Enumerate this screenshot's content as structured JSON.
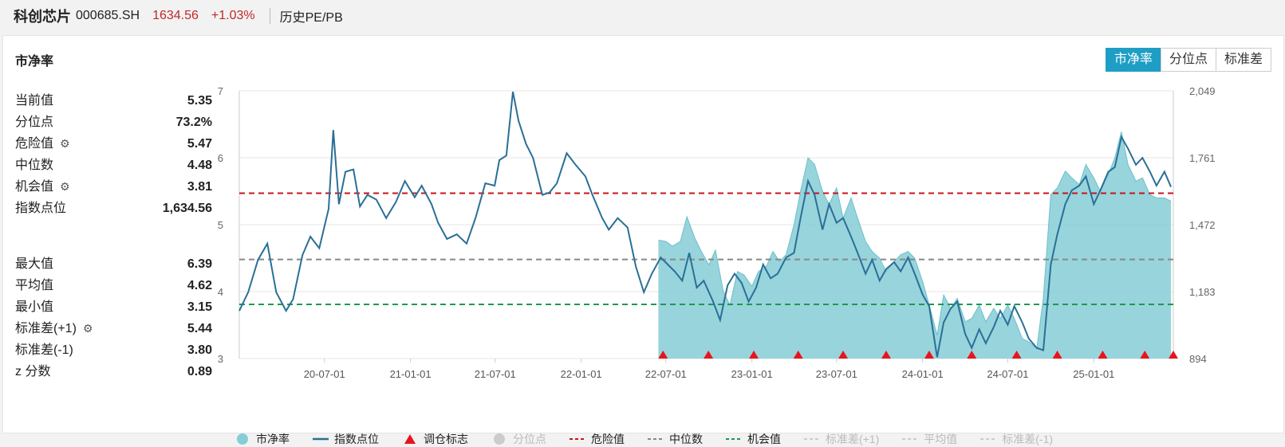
{
  "header": {
    "name": "科创芯片",
    "code": "000685.SH",
    "price": "1634.56",
    "change": "+1.03%",
    "tab": "历史PE/PB"
  },
  "card": {
    "title": "市净率",
    "buttons": [
      "市净率",
      "分位点",
      "标准差"
    ]
  },
  "stats": {
    "group1": [
      {
        "label": "当前值",
        "value": "5.35",
        "gear": false
      },
      {
        "label": "分位点",
        "value": "73.2%",
        "gear": false
      },
      {
        "label": "危险值",
        "value": "5.47",
        "gear": true
      },
      {
        "label": "中位数",
        "value": "4.48",
        "gear": false
      },
      {
        "label": "机会值",
        "value": "3.81",
        "gear": true
      },
      {
        "label": "指数点位",
        "value": "1,634.56",
        "gear": false
      }
    ],
    "group2": [
      {
        "label": "最大值",
        "value": "6.39",
        "gear": false
      },
      {
        "label": "平均值",
        "value": "4.62",
        "gear": false
      },
      {
        "label": "最小值",
        "value": "3.15",
        "gear": false
      },
      {
        "label": "标准差(+1)",
        "value": "5.44",
        "gear": true
      },
      {
        "label": "标准差(-1)",
        "value": "3.80",
        "gear": false
      },
      {
        "label": "z 分数",
        "value": "0.89",
        "gear": false
      }
    ]
  },
  "legend": [
    {
      "label": "市净率",
      "kind": "dot",
      "color": "#86cdd6",
      "dim": false
    },
    {
      "label": "指数点位",
      "kind": "line",
      "color": "#2a6f97",
      "dim": false
    },
    {
      "label": "调仓标志",
      "kind": "tri",
      "color": "#e8141c",
      "dim": false
    },
    {
      "label": "分位点",
      "kind": "dot",
      "color": "#cccccc",
      "dim": true
    },
    {
      "label": "危险值",
      "kind": "dash",
      "color": "#c8141c",
      "dim": false
    },
    {
      "label": "中位数",
      "kind": "dash",
      "color": "#888888",
      "dim": false
    },
    {
      "label": "机会值",
      "kind": "dash",
      "color": "#1a9a50",
      "dim": false
    },
    {
      "label": "标准差(+1)",
      "kind": "dash",
      "color": "#cccccc",
      "dim": true
    },
    {
      "label": "平均值",
      "kind": "dash",
      "color": "#cccccc",
      "dim": true
    },
    {
      "label": "标准差(-1)",
      "kind": "dash",
      "color": "#cccccc",
      "dim": true
    }
  ],
  "chart_data": {
    "type": "area",
    "x_ticks": [
      "20-07-01",
      "21-01-01",
      "21-07-01",
      "22-01-01",
      "22-07-01",
      "23-01-01",
      "23-07-01",
      "24-01-01",
      "24-07-01",
      "25-01-01"
    ],
    "x_tick_dates": [
      "2020-07-01",
      "2021-01-01",
      "2021-07-01",
      "2022-01-01",
      "2022-07-01",
      "2023-01-01",
      "2023-07-01",
      "2024-01-01",
      "2024-07-01",
      "2025-01-01"
    ],
    "x_range": [
      "2020-01-01",
      "2025-06-20"
    ],
    "y_left": {
      "min": 3,
      "max": 7,
      "ticks": [
        3,
        4,
        5,
        6,
        7
      ]
    },
    "y_right": {
      "min": 894,
      "max": 2049,
      "ticks": [
        "894",
        "1,183",
        "1,472",
        "1,761",
        "2,049"
      ]
    },
    "ref_lines": [
      {
        "name": "危险值",
        "value": 5.47,
        "color": "#c8141c"
      },
      {
        "name": "中位数",
        "value": 4.48,
        "color": "#888888"
      },
      {
        "name": "机会值",
        "value": 3.81,
        "color": "#1a9a50"
      }
    ],
    "pb_series": [
      [
        "2022-06-15",
        4.77
      ],
      [
        "2022-07-01",
        4.75
      ],
      [
        "2022-07-15",
        4.68
      ],
      [
        "2022-08-01",
        4.75
      ],
      [
        "2022-08-15",
        5.12
      ],
      [
        "2022-09-01",
        4.8
      ],
      [
        "2022-09-15",
        4.6
      ],
      [
        "2022-10-01",
        4.4
      ],
      [
        "2022-10-15",
        4.62
      ],
      [
        "2022-11-01",
        4.0
      ],
      [
        "2022-11-15",
        3.8
      ],
      [
        "2022-12-01",
        4.3
      ],
      [
        "2022-12-15",
        4.25
      ],
      [
        "2023-01-01",
        4.08
      ],
      [
        "2023-01-15",
        4.3
      ],
      [
        "2023-02-01",
        4.38
      ],
      [
        "2023-02-15",
        4.6
      ],
      [
        "2023-03-01",
        4.45
      ],
      [
        "2023-03-15",
        4.55
      ],
      [
        "2023-04-01",
        5.0
      ],
      [
        "2023-04-15",
        5.5
      ],
      [
        "2023-05-01",
        6.0
      ],
      [
        "2023-05-15",
        5.9
      ],
      [
        "2023-06-01",
        5.5
      ],
      [
        "2023-06-15",
        5.3
      ],
      [
        "2023-07-01",
        5.55
      ],
      [
        "2023-07-15",
        5.1
      ],
      [
        "2023-08-01",
        5.4
      ],
      [
        "2023-08-15",
        5.1
      ],
      [
        "2023-09-01",
        4.75
      ],
      [
        "2023-09-15",
        4.6
      ],
      [
        "2023-10-01",
        4.5
      ],
      [
        "2023-10-15",
        4.3
      ],
      [
        "2023-11-01",
        4.45
      ],
      [
        "2023-11-15",
        4.55
      ],
      [
        "2023-12-01",
        4.6
      ],
      [
        "2023-12-15",
        4.5
      ],
      [
        "2024-01-01",
        4.15
      ],
      [
        "2024-01-15",
        3.8
      ],
      [
        "2024-02-01",
        3.35
      ],
      [
        "2024-02-15",
        3.95
      ],
      [
        "2024-03-01",
        3.75
      ],
      [
        "2024-03-15",
        3.9
      ],
      [
        "2024-04-01",
        3.55
      ],
      [
        "2024-04-15",
        3.6
      ],
      [
        "2024-05-01",
        3.8
      ],
      [
        "2024-05-15",
        3.55
      ],
      [
        "2024-06-01",
        3.75
      ],
      [
        "2024-06-15",
        3.6
      ],
      [
        "2024-07-01",
        3.8
      ],
      [
        "2024-07-15",
        3.6
      ],
      [
        "2024-08-01",
        3.3
      ],
      [
        "2024-08-15",
        3.25
      ],
      [
        "2024-09-01",
        3.15
      ],
      [
        "2024-09-15",
        3.9
      ],
      [
        "2024-10-01",
        5.45
      ],
      [
        "2024-10-15",
        5.55
      ],
      [
        "2024-11-01",
        5.8
      ],
      [
        "2024-11-15",
        5.7
      ],
      [
        "2024-12-01",
        5.6
      ],
      [
        "2024-12-15",
        5.9
      ],
      [
        "2025-01-01",
        5.7
      ],
      [
        "2025-01-15",
        5.5
      ],
      [
        "2025-02-01",
        5.75
      ],
      [
        "2025-02-15",
        6.0
      ],
      [
        "2025-03-01",
        6.39
      ],
      [
        "2025-03-15",
        5.9
      ],
      [
        "2025-04-01",
        5.65
      ],
      [
        "2025-04-15",
        5.7
      ],
      [
        "2025-05-01",
        5.45
      ],
      [
        "2025-05-15",
        5.4
      ],
      [
        "2025-06-01",
        5.4
      ],
      [
        "2025-06-15",
        5.35
      ]
    ],
    "index_series": [
      [
        "2020-01-01",
        1100
      ],
      [
        "2020-01-20",
        1180
      ],
      [
        "2020-02-10",
        1320
      ],
      [
        "2020-03-01",
        1390
      ],
      [
        "2020-03-20",
        1180
      ],
      [
        "2020-04-10",
        1100
      ],
      [
        "2020-04-25",
        1150
      ],
      [
        "2020-05-15",
        1340
      ],
      [
        "2020-06-01",
        1420
      ],
      [
        "2020-06-20",
        1370
      ],
      [
        "2020-07-10",
        1540
      ],
      [
        "2020-07-20",
        1880
      ],
      [
        "2020-08-01",
        1560
      ],
      [
        "2020-08-15",
        1700
      ],
      [
        "2020-09-01",
        1710
      ],
      [
        "2020-09-15",
        1550
      ],
      [
        "2020-10-01",
        1600
      ],
      [
        "2020-10-20",
        1580
      ],
      [
        "2020-11-10",
        1500
      ],
      [
        "2020-12-01",
        1570
      ],
      [
        "2020-12-20",
        1660
      ],
      [
        "2021-01-10",
        1590
      ],
      [
        "2021-01-25",
        1640
      ],
      [
        "2021-02-15",
        1560
      ],
      [
        "2021-03-01",
        1480
      ],
      [
        "2021-03-20",
        1410
      ],
      [
        "2021-04-10",
        1430
      ],
      [
        "2021-05-01",
        1390
      ],
      [
        "2021-05-20",
        1500
      ],
      [
        "2021-06-10",
        1650
      ],
      [
        "2021-06-30",
        1640
      ],
      [
        "2021-07-10",
        1750
      ],
      [
        "2021-07-25",
        1770
      ],
      [
        "2021-08-08",
        2045
      ],
      [
        "2021-08-20",
        1920
      ],
      [
        "2021-09-05",
        1820
      ],
      [
        "2021-09-20",
        1760
      ],
      [
        "2021-10-10",
        1600
      ],
      [
        "2021-10-25",
        1610
      ],
      [
        "2021-11-10",
        1650
      ],
      [
        "2021-12-01",
        1780
      ],
      [
        "2021-12-20",
        1730
      ],
      [
        "2022-01-10",
        1680
      ],
      [
        "2022-01-25",
        1600
      ],
      [
        "2022-02-15",
        1500
      ],
      [
        "2022-03-01",
        1450
      ],
      [
        "2022-03-20",
        1500
      ],
      [
        "2022-04-10",
        1460
      ],
      [
        "2022-04-28",
        1290
      ],
      [
        "2022-05-15",
        1180
      ],
      [
        "2022-06-01",
        1260
      ],
      [
        "2022-06-20",
        1330
      ],
      [
        "2022-07-05",
        1300
      ],
      [
        "2022-07-20",
        1270
      ],
      [
        "2022-08-05",
        1230
      ],
      [
        "2022-08-20",
        1350
      ],
      [
        "2022-09-05",
        1200
      ],
      [
        "2022-09-20",
        1230
      ],
      [
        "2022-10-10",
        1140
      ],
      [
        "2022-10-25",
        1060
      ],
      [
        "2022-11-10",
        1210
      ],
      [
        "2022-11-25",
        1260
      ],
      [
        "2022-12-10",
        1220
      ],
      [
        "2022-12-25",
        1140
      ],
      [
        "2023-01-10",
        1200
      ],
      [
        "2023-01-25",
        1300
      ],
      [
        "2023-02-10",
        1240
      ],
      [
        "2023-02-25",
        1260
      ],
      [
        "2023-03-15",
        1330
      ],
      [
        "2023-04-01",
        1350
      ],
      [
        "2023-04-15",
        1500
      ],
      [
        "2023-05-01",
        1660
      ],
      [
        "2023-05-15",
        1600
      ],
      [
        "2023-06-01",
        1450
      ],
      [
        "2023-06-15",
        1560
      ],
      [
        "2023-07-01",
        1480
      ],
      [
        "2023-07-15",
        1500
      ],
      [
        "2023-08-01",
        1420
      ],
      [
        "2023-08-15",
        1350
      ],
      [
        "2023-09-01",
        1260
      ],
      [
        "2023-09-15",
        1320
      ],
      [
        "2023-10-01",
        1230
      ],
      [
        "2023-10-15",
        1280
      ],
      [
        "2023-11-01",
        1310
      ],
      [
        "2023-11-15",
        1270
      ],
      [
        "2023-12-01",
        1330
      ],
      [
        "2023-12-15",
        1260
      ],
      [
        "2024-01-01",
        1170
      ],
      [
        "2024-01-15",
        1120
      ],
      [
        "2024-02-01",
        900
      ],
      [
        "2024-02-15",
        1050
      ],
      [
        "2024-03-01",
        1110
      ],
      [
        "2024-03-15",
        1140
      ],
      [
        "2024-04-01",
        1000
      ],
      [
        "2024-04-15",
        940
      ],
      [
        "2024-05-01",
        1020
      ],
      [
        "2024-05-15",
        960
      ],
      [
        "2024-06-01",
        1030
      ],
      [
        "2024-06-15",
        1100
      ],
      [
        "2024-07-01",
        1040
      ],
      [
        "2024-07-15",
        1120
      ],
      [
        "2024-08-01",
        1050
      ],
      [
        "2024-08-15",
        980
      ],
      [
        "2024-09-01",
        940
      ],
      [
        "2024-09-15",
        930
      ],
      [
        "2024-10-01",
        1300
      ],
      [
        "2024-10-15",
        1430
      ],
      [
        "2024-11-01",
        1560
      ],
      [
        "2024-11-15",
        1620
      ],
      [
        "2024-12-01",
        1640
      ],
      [
        "2024-12-15",
        1680
      ],
      [
        "2025-01-01",
        1560
      ],
      [
        "2025-01-15",
        1620
      ],
      [
        "2025-02-01",
        1700
      ],
      [
        "2025-02-15",
        1720
      ],
      [
        "2025-03-01",
        1850
      ],
      [
        "2025-03-15",
        1800
      ],
      [
        "2025-04-01",
        1730
      ],
      [
        "2025-04-15",
        1760
      ],
      [
        "2025-05-01",
        1700
      ],
      [
        "2025-05-15",
        1640
      ],
      [
        "2025-06-01",
        1700
      ],
      [
        "2025-06-15",
        1634.56
      ]
    ],
    "rebalance_markers": [
      "2022-06-25",
      "2022-09-30",
      "2023-01-05",
      "2023-04-10",
      "2023-07-15",
      "2023-10-15",
      "2024-01-15",
      "2024-04-15",
      "2024-07-20",
      "2024-10-15",
      "2025-01-20",
      "2025-04-20",
      "2025-06-20"
    ]
  }
}
